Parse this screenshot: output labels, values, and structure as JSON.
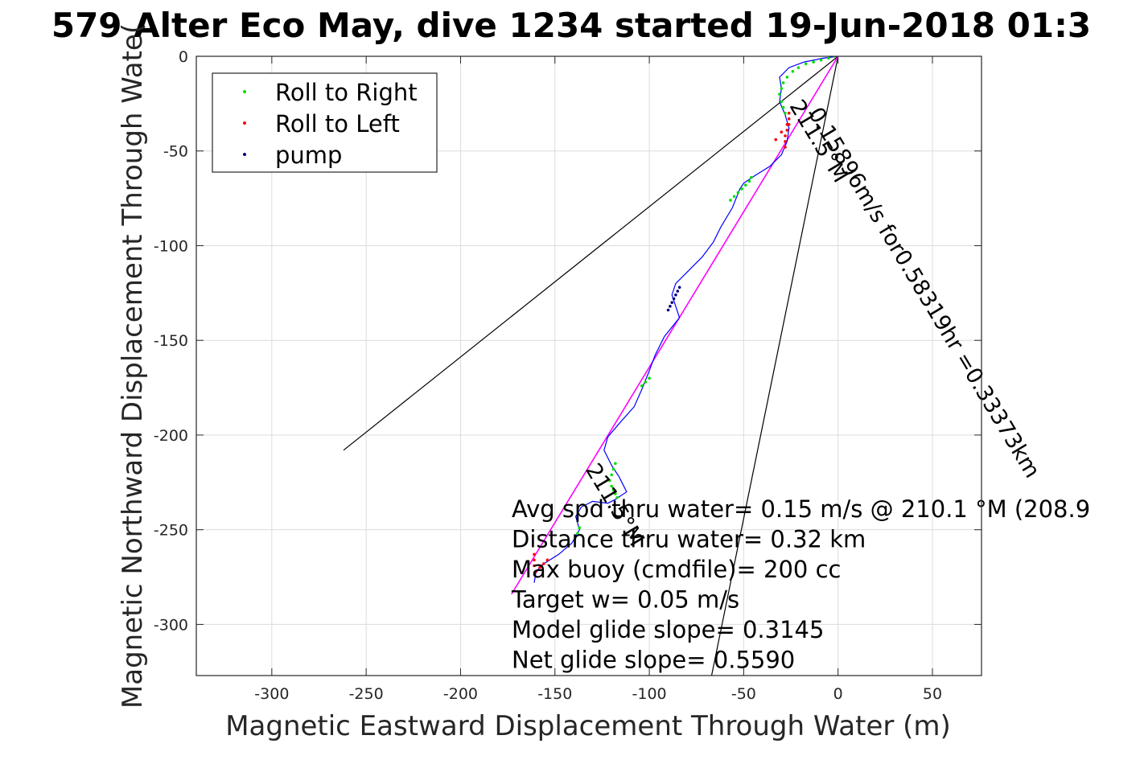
{
  "chart_data": {
    "type": "line",
    "title": "579 Alter Eco May, dive 1234 started 19-Jun-2018 01:3",
    "xlabel": "Magnetic Eastward Displacement Through Water (m)",
    "ylabel": "Magnetic Northward Displacement Through Wate(",
    "xlim": [
      -340,
      76
    ],
    "ylim": [
      -327,
      0
    ],
    "xticks": [
      -300,
      -250,
      -200,
      -150,
      -100,
      -50,
      0,
      50
    ],
    "yticks": [
      0,
      -50,
      -100,
      -150,
      -200,
      -250,
      -300
    ],
    "grid": true,
    "legend": {
      "placement": "top-left",
      "entries": [
        {
          "label": "Roll to Right",
          "color": "#00e000"
        },
        {
          "label": "Roll to Left",
          "color": "#ff0000"
        },
        {
          "label": "pump",
          "color": "#000080"
        }
      ]
    },
    "track": {
      "color": "#0000ff",
      "x": [
        0,
        -8,
        -18,
        -26,
        -31,
        -30,
        -31,
        -28,
        -26,
        -27,
        -30,
        -36,
        -44,
        -50,
        -52,
        -56,
        -62,
        -66,
        -72,
        -80,
        -86,
        -88,
        -86,
        -84,
        -92,
        -97,
        -100,
        -104,
        -108,
        -116,
        -122,
        -124,
        -120,
        -116,
        -112,
        -118,
        -122,
        -130,
        -136,
        -139,
        -137,
        -141,
        -148,
        -156,
        -160,
        -161
      ],
      "y": [
        0,
        -1,
        -3,
        -6,
        -11,
        -17,
        -24,
        -31,
        -38,
        -45,
        -52,
        -58,
        -63,
        -67,
        -70,
        -80,
        -90,
        -98,
        -106,
        -114,
        -120,
        -126,
        -132,
        -138,
        -148,
        -158,
        -166,
        -176,
        -185,
        -194,
        -201,
        -208,
        -216,
        -222,
        -230,
        -234,
        -236,
        -235,
        -238,
        -243,
        -250,
        -257,
        -263,
        -268,
        -272,
        -278
      ]
    },
    "roll_right": {
      "color": "#00e000",
      "x": [
        -2,
        -5,
        -9,
        -13,
        -17,
        -21,
        -24,
        -27,
        -29,
        -30,
        -31,
        -30,
        -29,
        -28,
        -46,
        -47,
        -49,
        -51,
        -53,
        -55,
        -57,
        -100,
        -102,
        -104,
        -118,
        -119,
        -120,
        -121,
        -120,
        -119,
        -118,
        -117,
        -137,
        -138
      ],
      "y": [
        0,
        -1,
        -2,
        -3,
        -4,
        -6,
        -8,
        -11,
        -14,
        -17,
        -20,
        -24,
        -27,
        -30,
        -64,
        -66,
        -68,
        -70,
        -72,
        -74,
        -76,
        -170,
        -172,
        -174,
        -215,
        -218,
        -221,
        -224,
        -227,
        -229,
        -231,
        -233,
        -249,
        -252
      ]
    },
    "roll_left": {
      "color": "#ff0000",
      "x": [
        -26,
        -26,
        -27,
        -27,
        -28,
        -28,
        -28,
        -26,
        -30,
        -33,
        -161,
        -161,
        -161,
        -160,
        -158,
        -156,
        -154
      ],
      "y": [
        -30,
        -33,
        -36,
        -39,
        -42,
        -45,
        -48,
        -36,
        -40,
        -44,
        -263,
        -266,
        -269,
        -272,
        -270,
        -268,
        -266
      ]
    },
    "pump": {
      "color": "#000080",
      "x": [
        -84,
        -85,
        -86,
        -87,
        -88,
        -89,
        -90
      ],
      "y": [
        -122,
        -124,
        -126,
        -128,
        -130,
        -132,
        -134
      ]
    },
    "net_line": {
      "color": "#ff00ff",
      "x": [
        0,
        -173
      ],
      "y": [
        0,
        -284
      ]
    },
    "current_lines": [
      {
        "x": [
          0,
          -262
        ],
        "y": [
          0,
          -208
        ]
      },
      {
        "x": [
          0,
          -67
        ],
        "y": [
          0,
          -327
        ]
      }
    ],
    "rotated_labels": [
      {
        "text": "211.5°M",
        "x": -26,
        "y": -26,
        "angle": 59
      },
      {
        "text": "0.15896m/s for0.58319hr =0.33373km",
        "x": -16,
        "y": -30,
        "angle": 59
      },
      {
        "text": "211.5°M",
        "x": -134,
        "y": -218,
        "angle": 59
      }
    ],
    "annotations": [
      "Avg spd thru water=  0.15 m/s @ 210.1 °M (208.9",
      "Distance thru water=  0.32 km",
      "Max buoy (cmdfile)= 200 cc",
      "Target w= 0.05 m/s",
      "Model glide slope= 0.3145",
      "Net glide slope= 0.5590"
    ]
  }
}
